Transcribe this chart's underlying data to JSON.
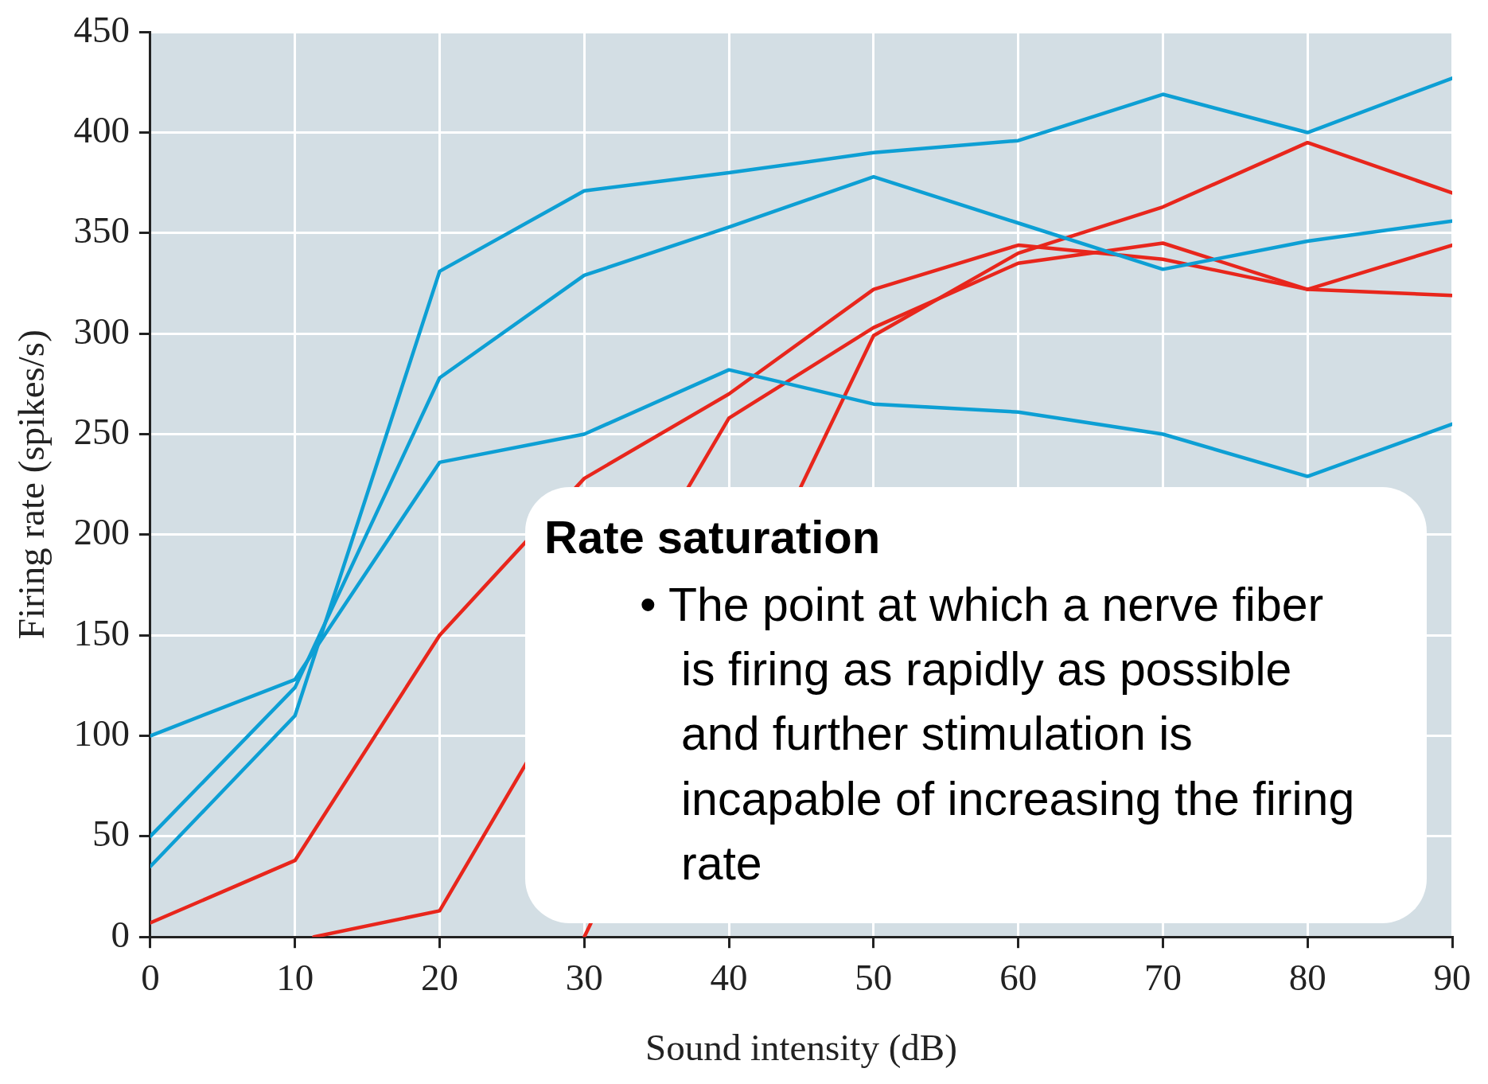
{
  "chart_data": {
    "type": "line",
    "xlabel": "Sound intensity (dB)",
    "ylabel": "Firing rate (spikes/s)",
    "x": [
      0,
      10,
      20,
      30,
      40,
      50,
      60,
      70,
      80,
      90
    ],
    "xlim": [
      0,
      90
    ],
    "xticks": [
      0,
      10,
      20,
      30,
      40,
      50,
      60,
      70,
      80,
      90
    ],
    "ylim": [
      0,
      450
    ],
    "yticks": [
      0,
      50,
      100,
      150,
      200,
      250,
      300,
      350,
      400,
      450
    ],
    "grid": true,
    "legend": false,
    "marker": "none",
    "line_style": "solid",
    "series": [
      {
        "color": "#0d9fd4",
        "values": [
          35,
          110,
          331,
          371,
          380,
          390,
          396,
          419,
          400,
          427
        ]
      },
      {
        "color": "#0d9fd4",
        "values": [
          50,
          124,
          278,
          329,
          353,
          378,
          355,
          332,
          346,
          356
        ]
      },
      {
        "color": "#0d9fd4",
        "values": [
          100,
          128,
          236,
          250,
          282,
          265,
          261,
          250,
          229,
          255
        ]
      },
      {
        "color": "#e8261c",
        "values": [
          7,
          38,
          150,
          228,
          270,
          322,
          344,
          337,
          322,
          319
        ]
      },
      {
        "color": "#e8261c",
        "x": [
          11.3,
          20,
          30,
          40,
          50,
          60,
          70,
          80,
          90
        ],
        "values": [
          0,
          13,
          null,
          258,
          303,
          335,
          345,
          322,
          344
        ]
      },
      {
        "color": "#e8261c",
        "x": [
          30,
          40,
          50,
          60,
          70,
          80,
          90
        ],
        "values": [
          0,
          null,
          299,
          340,
          363,
          395,
          370
        ]
      }
    ],
    "annotations": [
      "Rate saturation",
      "• The point at which a nerve fiber is firing as rapidly as possible and further stimulation is incapable of increasing the firing rate"
    ]
  }
}
